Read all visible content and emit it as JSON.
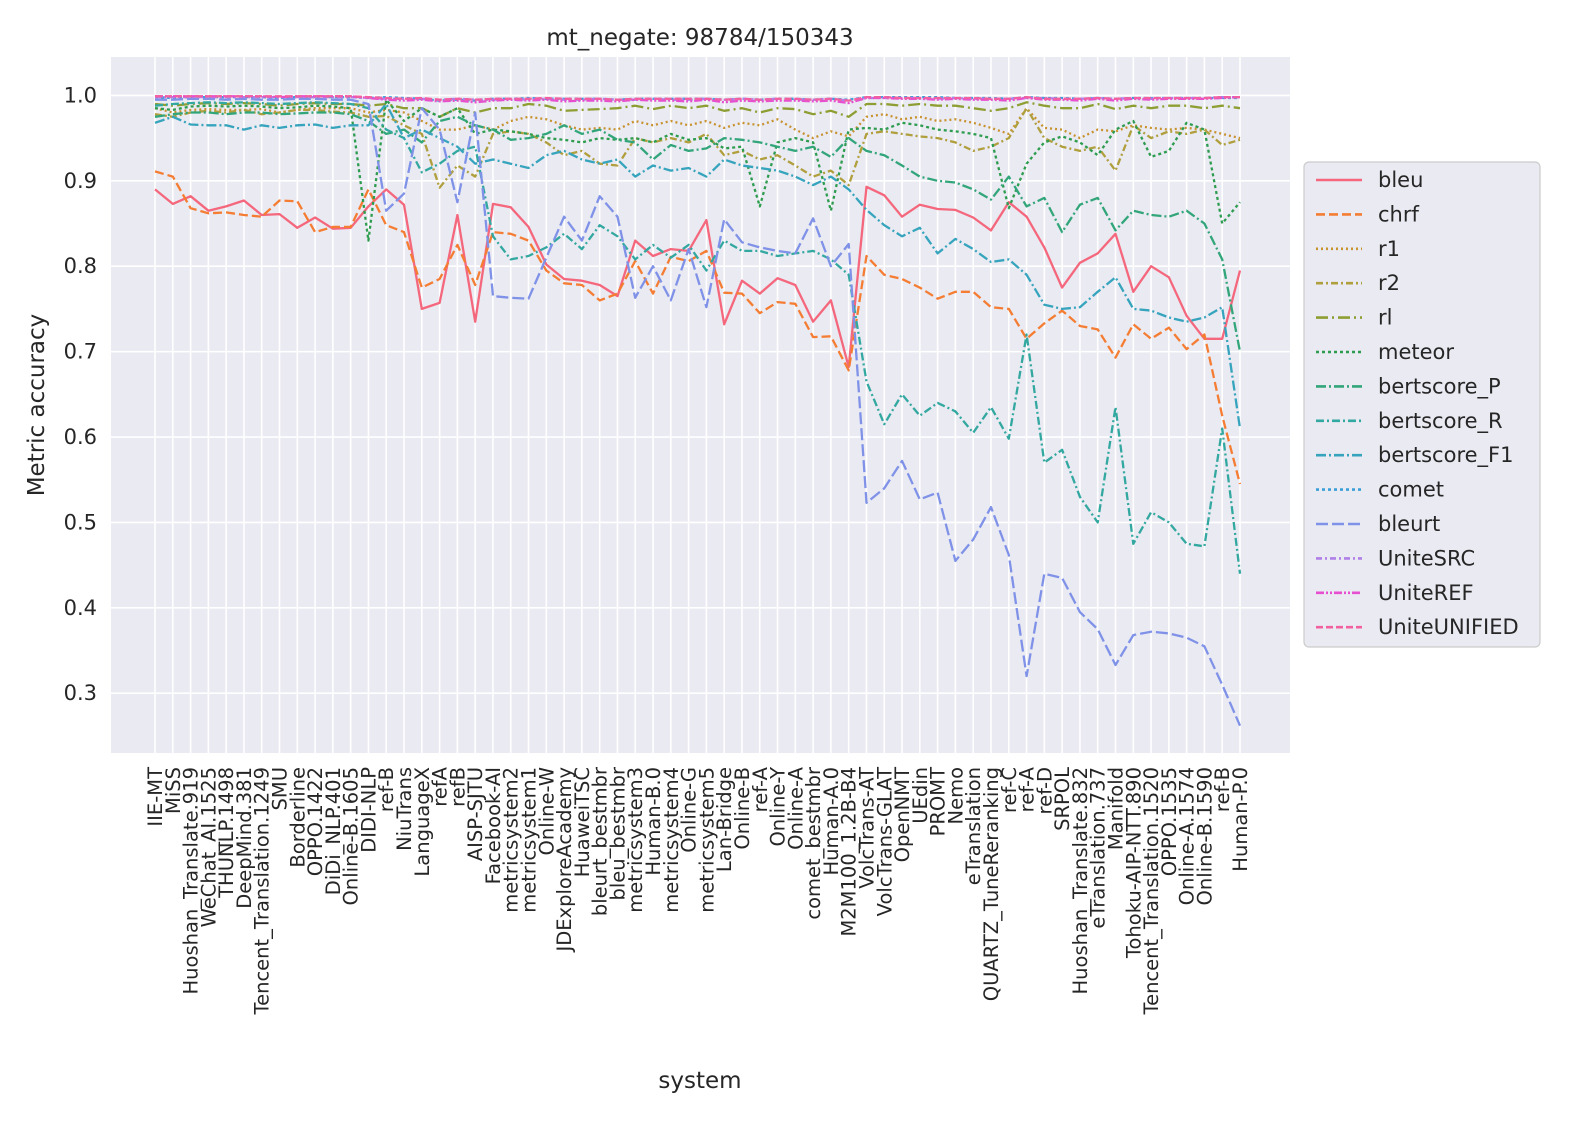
{
  "chart_data": {
    "type": "line",
    "title": "mt_negate: 98784/150343",
    "xlabel": "system",
    "ylabel": "Metric accuracy",
    "ylim": [
      0.23,
      1.045
    ],
    "yticks": [
      "0.3",
      "0.4",
      "0.5",
      "0.6",
      "0.7",
      "0.8",
      "0.9",
      "1.0"
    ],
    "grid": true,
    "legend_position": "right",
    "categories": [
      "IIE-MT",
      "MiSS",
      "Huoshan_Translate.919",
      "WeChat_AI.1525",
      "THUNLP.1498",
      "DeepMind.381",
      "Tencent_Translation.1249",
      "SMU",
      "Borderline",
      "OPPO.1422",
      "DiDi_NLP.401",
      "Online-B.1605",
      "DIDI-NLP",
      "ref-B",
      "NiuTrans",
      "LanguageX",
      "refA",
      "refB",
      "AISP-SJTU",
      "Facebook-AI",
      "metricsystem2",
      "metricsystem1",
      "Online-W",
      "JDExploreAcademy",
      "HuaweiTSC",
      "bleurt_bestmbr",
      "bleu_bestmbr",
      "metricsystem3",
      "Human-B.0",
      "metricsystem4",
      "Online-G",
      "metricsystem5",
      "Lan-Bridge",
      "Online-B",
      "ref-A",
      "Online-Y",
      "Online-A",
      "comet_bestmbr",
      "Human-A.0",
      "M2M100_1.2B-B4",
      "VolcTrans-AT",
      "VolcTrans-GLAT",
      "OpenNMT",
      "UEdin",
      "PROMT",
      "Nemo",
      "eTranslation",
      "QUARTZ_TuneReranking",
      "ref-C",
      "ref-A",
      "ref-D",
      "SRPOL",
      "Huoshan_Translate.832",
      "eTranslation.737",
      "Manifold",
      "Tohoku-AIP-NTT.890",
      "Tencent_Translation.1520",
      "OPPO.1535",
      "Online-A.1574",
      "Online-B.1590",
      "ref-B",
      "Human-P.0"
    ],
    "series": [
      {
        "name": "bleu",
        "color": "#f4677c",
        "dash": "",
        "values": [
          0.89,
          0.873,
          0.882,
          0.865,
          0.87,
          0.877,
          0.86,
          0.861,
          0.845,
          0.857,
          0.844,
          0.845,
          0.87,
          0.89,
          0.872,
          0.75,
          0.757,
          0.86,
          0.735,
          0.873,
          0.869,
          0.846,
          0.802,
          0.785,
          0.783,
          0.778,
          0.765,
          0.83,
          0.812,
          0.82,
          0.818,
          0.854,
          0.732,
          0.783,
          0.768,
          0.786,
          0.778,
          0.735,
          0.76,
          0.682,
          0.893,
          0.883,
          0.858,
          0.872,
          0.867,
          0.866,
          0.857,
          0.842,
          0.875,
          0.858,
          0.822,
          0.775,
          0.804,
          0.815,
          0.838,
          0.77,
          0.8,
          0.787,
          0.742,
          0.715,
          0.715,
          0.795
        ]
      },
      {
        "name": "chrf",
        "color": "#f47d33",
        "dash": "9,4",
        "values": [
          0.911,
          0.905,
          0.868,
          0.862,
          0.863,
          0.86,
          0.858,
          0.877,
          0.876,
          0.84,
          0.846,
          0.846,
          0.89,
          0.848,
          0.84,
          0.775,
          0.785,
          0.825,
          0.778,
          0.84,
          0.838,
          0.83,
          0.795,
          0.78,
          0.778,
          0.76,
          0.768,
          0.806,
          0.768,
          0.811,
          0.806,
          0.818,
          0.769,
          0.768,
          0.745,
          0.758,
          0.756,
          0.717,
          0.718,
          0.678,
          0.812,
          0.79,
          0.785,
          0.775,
          0.762,
          0.77,
          0.77,
          0.752,
          0.75,
          0.715,
          0.733,
          0.748,
          0.73,
          0.726,
          0.693,
          0.732,
          0.715,
          0.728,
          0.703,
          0.72,
          0.625,
          0.545
        ]
      },
      {
        "name": "r1",
        "color": "#c8922e",
        "dash": "2,3",
        "values": [
          0.985,
          0.98,
          0.983,
          0.984,
          0.983,
          0.983,
          0.984,
          0.98,
          0.983,
          0.985,
          0.985,
          0.985,
          0.98,
          0.983,
          0.98,
          0.97,
          0.96,
          0.96,
          0.965,
          0.96,
          0.97,
          0.975,
          0.972,
          0.965,
          0.96,
          0.962,
          0.96,
          0.97,
          0.965,
          0.97,
          0.965,
          0.97,
          0.962,
          0.968,
          0.965,
          0.972,
          0.96,
          0.95,
          0.958,
          0.952,
          0.975,
          0.978,
          0.972,
          0.975,
          0.97,
          0.972,
          0.968,
          0.962,
          0.955,
          0.985,
          0.962,
          0.96,
          0.95,
          0.96,
          0.958,
          0.965,
          0.962,
          0.96,
          0.962,
          0.96,
          0.955,
          0.95
        ]
      },
      {
        "name": "r2",
        "color": "#b09f3d",
        "dash": "7,3,2,3",
        "values": [
          0.978,
          0.975,
          0.98,
          0.982,
          0.98,
          0.983,
          0.978,
          0.98,
          0.983,
          0.983,
          0.981,
          0.98,
          0.975,
          0.976,
          0.965,
          0.955,
          0.892,
          0.918,
          0.905,
          0.955,
          0.958,
          0.955,
          0.945,
          0.93,
          0.935,
          0.92,
          0.918,
          0.95,
          0.945,
          0.95,
          0.945,
          0.955,
          0.93,
          0.935,
          0.925,
          0.93,
          0.918,
          0.905,
          0.912,
          0.895,
          0.955,
          0.958,
          0.955,
          0.952,
          0.95,
          0.945,
          0.935,
          0.94,
          0.95,
          0.985,
          0.95,
          0.94,
          0.935,
          0.94,
          0.912,
          0.965,
          0.95,
          0.958,
          0.955,
          0.96,
          0.942,
          0.948
        ]
      },
      {
        "name": "rl",
        "color": "#8e9e33",
        "dash": "12,4,2,4",
        "values": [
          0.99,
          0.988,
          0.99,
          0.991,
          0.99,
          0.991,
          0.99,
          0.988,
          0.99,
          0.991,
          0.99,
          0.99,
          0.988,
          0.99,
          0.985,
          0.985,
          0.975,
          0.985,
          0.98,
          0.985,
          0.985,
          0.99,
          0.988,
          0.982,
          0.983,
          0.984,
          0.985,
          0.988,
          0.984,
          0.988,
          0.985,
          0.988,
          0.982,
          0.985,
          0.98,
          0.985,
          0.984,
          0.978,
          0.982,
          0.975,
          0.99,
          0.99,
          0.988,
          0.99,
          0.988,
          0.988,
          0.985,
          0.982,
          0.985,
          0.992,
          0.988,
          0.985,
          0.985,
          0.99,
          0.984,
          0.988,
          0.985,
          0.988,
          0.988,
          0.985,
          0.988,
          0.985
        ]
      },
      {
        "name": "meteor",
        "color": "#2d9c4f",
        "dash": "3,3",
        "values": [
          0.985,
          0.983,
          0.987,
          0.988,
          0.987,
          0.988,
          0.987,
          0.985,
          0.986,
          0.988,
          0.987,
          0.985,
          0.83,
          0.995,
          0.97,
          0.985,
          0.975,
          0.985,
          0.955,
          0.96,
          0.958,
          0.955,
          0.95,
          0.948,
          0.945,
          0.95,
          0.948,
          0.95,
          0.945,
          0.955,
          0.948,
          0.95,
          0.938,
          0.94,
          0.87,
          0.945,
          0.95,
          0.945,
          0.865,
          0.96,
          0.962,
          0.96,
          0.968,
          0.965,
          0.96,
          0.958,
          0.955,
          0.95,
          0.868,
          0.92,
          0.945,
          0.952,
          0.945,
          0.93,
          0.96,
          0.97,
          0.928,
          0.935,
          0.968,
          0.96,
          0.85,
          0.875
        ]
      },
      {
        "name": "bertscore_P",
        "color": "#32a67a",
        "dash": "10,3,2,3",
        "values": [
          0.975,
          0.978,
          0.98,
          0.98,
          0.978,
          0.98,
          0.98,
          0.978,
          0.979,
          0.98,
          0.98,
          0.978,
          0.97,
          0.955,
          0.96,
          0.945,
          0.97,
          0.975,
          0.965,
          0.96,
          0.948,
          0.95,
          0.955,
          0.965,
          0.955,
          0.96,
          0.948,
          0.945,
          0.925,
          0.942,
          0.935,
          0.938,
          0.95,
          0.948,
          0.945,
          0.94,
          0.935,
          0.94,
          0.928,
          0.95,
          0.935,
          0.93,
          0.918,
          0.905,
          0.9,
          0.898,
          0.89,
          0.878,
          0.905,
          0.87,
          0.88,
          0.84,
          0.872,
          0.88,
          0.842,
          0.865,
          0.86,
          0.858,
          0.865,
          0.85,
          0.808,
          0.7
        ]
      },
      {
        "name": "bertscore_R",
        "color": "#33a8a0",
        "dash": "8,3,2,3",
        "values": [
          0.988,
          0.99,
          0.991,
          0.992,
          0.991,
          0.992,
          0.991,
          0.99,
          0.991,
          0.992,
          0.991,
          0.99,
          0.985,
          0.96,
          0.95,
          0.91,
          0.92,
          0.935,
          0.94,
          0.835,
          0.808,
          0.812,
          0.822,
          0.838,
          0.82,
          0.848,
          0.835,
          0.808,
          0.825,
          0.81,
          0.825,
          0.795,
          0.83,
          0.818,
          0.818,
          0.812,
          0.815,
          0.818,
          0.808,
          0.79,
          0.665,
          0.615,
          0.65,
          0.625,
          0.64,
          0.63,
          0.605,
          0.635,
          0.598,
          0.72,
          0.57,
          0.585,
          0.53,
          0.5,
          0.635,
          0.475,
          0.512,
          0.5,
          0.475,
          0.472,
          0.61,
          0.44
        ]
      },
      {
        "name": "bertscore_F1",
        "color": "#36a4bd",
        "dash": "10,3,2,3",
        "values": [
          0.968,
          0.975,
          0.966,
          0.965,
          0.965,
          0.96,
          0.965,
          0.962,
          0.965,
          0.966,
          0.962,
          0.965,
          0.965,
          0.99,
          0.95,
          0.96,
          0.95,
          0.94,
          0.92,
          0.925,
          0.92,
          0.915,
          0.93,
          0.935,
          0.925,
          0.92,
          0.925,
          0.905,
          0.918,
          0.912,
          0.915,
          0.905,
          0.925,
          0.918,
          0.915,
          0.912,
          0.905,
          0.895,
          0.905,
          0.89,
          0.866,
          0.848,
          0.835,
          0.845,
          0.815,
          0.832,
          0.82,
          0.805,
          0.808,
          0.79,
          0.755,
          0.75,
          0.752,
          0.77,
          0.787,
          0.75,
          0.748,
          0.74,
          0.735,
          0.74,
          0.752,
          0.61
        ]
      },
      {
        "name": "comet",
        "color": "#3a9fd8",
        "dash": "3,3",
        "values": [
          0.998,
          0.997,
          0.998,
          0.998,
          0.998,
          0.998,
          0.998,
          0.997,
          0.998,
          0.998,
          0.998,
          0.998,
          0.997,
          0.998,
          0.997,
          0.996,
          0.994,
          0.995,
          0.994,
          0.996,
          0.996,
          0.997,
          0.996,
          0.996,
          0.996,
          0.996,
          0.995,
          0.996,
          0.996,
          0.996,
          0.996,
          0.996,
          0.995,
          0.996,
          0.995,
          0.996,
          0.996,
          0.995,
          0.996,
          0.995,
          0.998,
          0.998,
          0.998,
          0.998,
          0.998,
          0.997,
          0.997,
          0.997,
          0.996,
          0.998,
          0.997,
          0.997,
          0.996,
          0.997,
          0.996,
          0.997,
          0.997,
          0.997,
          0.997,
          0.997,
          0.997,
          0.997
        ]
      },
      {
        "name": "bleurt",
        "color": "#7f92e8",
        "dash": "12,4",
        "values": [
          0.995,
          0.995,
          0.996,
          0.996,
          0.995,
          0.996,
          0.995,
          0.995,
          0.996,
          0.996,
          0.995,
          0.995,
          0.99,
          0.865,
          0.885,
          0.985,
          0.96,
          0.875,
          0.98,
          0.765,
          0.763,
          0.762,
          0.81,
          0.858,
          0.83,
          0.882,
          0.858,
          0.763,
          0.8,
          0.76,
          0.82,
          0.752,
          0.855,
          0.828,
          0.822,
          0.818,
          0.815,
          0.856,
          0.8,
          0.826,
          0.523,
          0.54,
          0.572,
          0.527,
          0.535,
          0.455,
          0.48,
          0.518,
          0.462,
          0.32,
          0.44,
          0.435,
          0.395,
          0.375,
          0.333,
          0.368,
          0.372,
          0.37,
          0.365,
          0.355,
          0.31,
          0.262
        ]
      },
      {
        "name": "UniteSRC",
        "color": "#b07fe8",
        "dash": "6,3,2,3",
        "values": [
          0.998,
          0.998,
          0.998,
          0.998,
          0.998,
          0.998,
          0.998,
          0.998,
          0.998,
          0.998,
          0.998,
          0.998,
          0.997,
          0.996,
          0.996,
          0.996,
          0.995,
          0.996,
          0.995,
          0.995,
          0.996,
          0.995,
          0.996,
          0.995,
          0.995,
          0.996,
          0.995,
          0.995,
          0.996,
          0.995,
          0.995,
          0.996,
          0.995,
          0.996,
          0.995,
          0.996,
          0.995,
          0.995,
          0.996,
          0.994,
          0.997,
          0.997,
          0.997,
          0.997,
          0.996,
          0.997,
          0.996,
          0.996,
          0.996,
          0.997,
          0.997,
          0.996,
          0.996,
          0.997,
          0.996,
          0.997,
          0.996,
          0.997,
          0.997,
          0.997,
          0.998,
          0.998
        ]
      },
      {
        "name": "UniteREF",
        "color": "#e650d0",
        "dash": "8,2,2,2,2,2",
        "values": [
          0.999,
          0.999,
          0.999,
          0.999,
          0.999,
          0.999,
          0.999,
          0.998,
          0.999,
          0.999,
          0.999,
          0.999,
          0.997,
          0.995,
          0.994,
          0.995,
          0.993,
          0.994,
          0.992,
          0.994,
          0.995,
          0.994,
          0.995,
          0.993,
          0.994,
          0.994,
          0.993,
          0.995,
          0.994,
          0.994,
          0.993,
          0.995,
          0.992,
          0.994,
          0.993,
          0.994,
          0.994,
          0.993,
          0.994,
          0.991,
          0.997,
          0.997,
          0.996,
          0.996,
          0.995,
          0.996,
          0.995,
          0.995,
          0.994,
          0.997,
          0.995,
          0.995,
          0.994,
          0.996,
          0.994,
          0.996,
          0.995,
          0.996,
          0.996,
          0.996,
          0.997,
          0.998
        ]
      },
      {
        "name": "UniteUNIFIED",
        "color": "#f2609f",
        "dash": "7,3",
        "values": [
          0.999,
          0.999,
          0.999,
          0.999,
          0.999,
          0.999,
          0.999,
          0.999,
          0.999,
          0.999,
          0.999,
          0.999,
          0.998,
          0.997,
          0.996,
          0.997,
          0.995,
          0.996,
          0.995,
          0.996,
          0.996,
          0.996,
          0.997,
          0.996,
          0.996,
          0.996,
          0.995,
          0.996,
          0.996,
          0.996,
          0.996,
          0.996,
          0.995,
          0.996,
          0.995,
          0.996,
          0.996,
          0.995,
          0.996,
          0.994,
          0.998,
          0.998,
          0.997,
          0.997,
          0.997,
          0.997,
          0.997,
          0.996,
          0.996,
          0.998,
          0.996,
          0.996,
          0.996,
          0.997,
          0.996,
          0.997,
          0.997,
          0.997,
          0.997,
          0.997,
          0.998,
          0.998
        ]
      }
    ]
  }
}
